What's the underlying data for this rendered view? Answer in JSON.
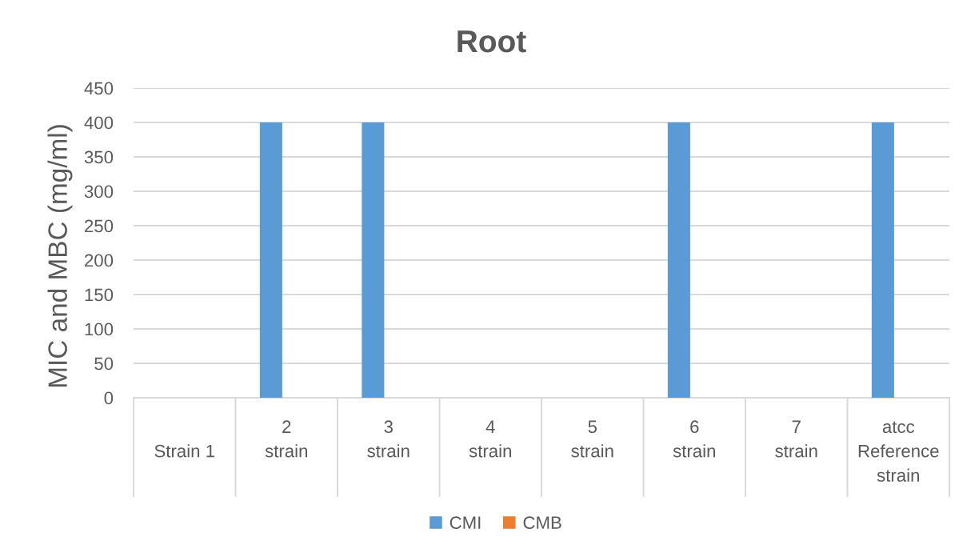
{
  "chart_data": {
    "type": "bar",
    "title": "Root",
    "ylabel": "MIC and MBC (mg/ml)",
    "categories": [
      "\nStrain 1",
      "2\nstrain",
      "3\nstrain",
      "4\nstrain",
      "5\nstrain",
      "6\nstrain",
      "7\nstrain",
      "atcc\nReference\nstrain"
    ],
    "series": [
      {
        "name": "CMI",
        "color": "#5b9bd5",
        "values": [
          0,
          400,
          400,
          0,
          0,
          400,
          0,
          400
        ]
      },
      {
        "name": "CMB",
        "color": "#ed7d31",
        "values": [
          0,
          0,
          0,
          0,
          0,
          0,
          0,
          0
        ]
      }
    ],
    "ylim": [
      0,
      450
    ],
    "yticks": [
      0,
      50,
      100,
      150,
      200,
      250,
      300,
      350,
      400,
      450
    ],
    "grid": "y",
    "legend": "bottom"
  }
}
